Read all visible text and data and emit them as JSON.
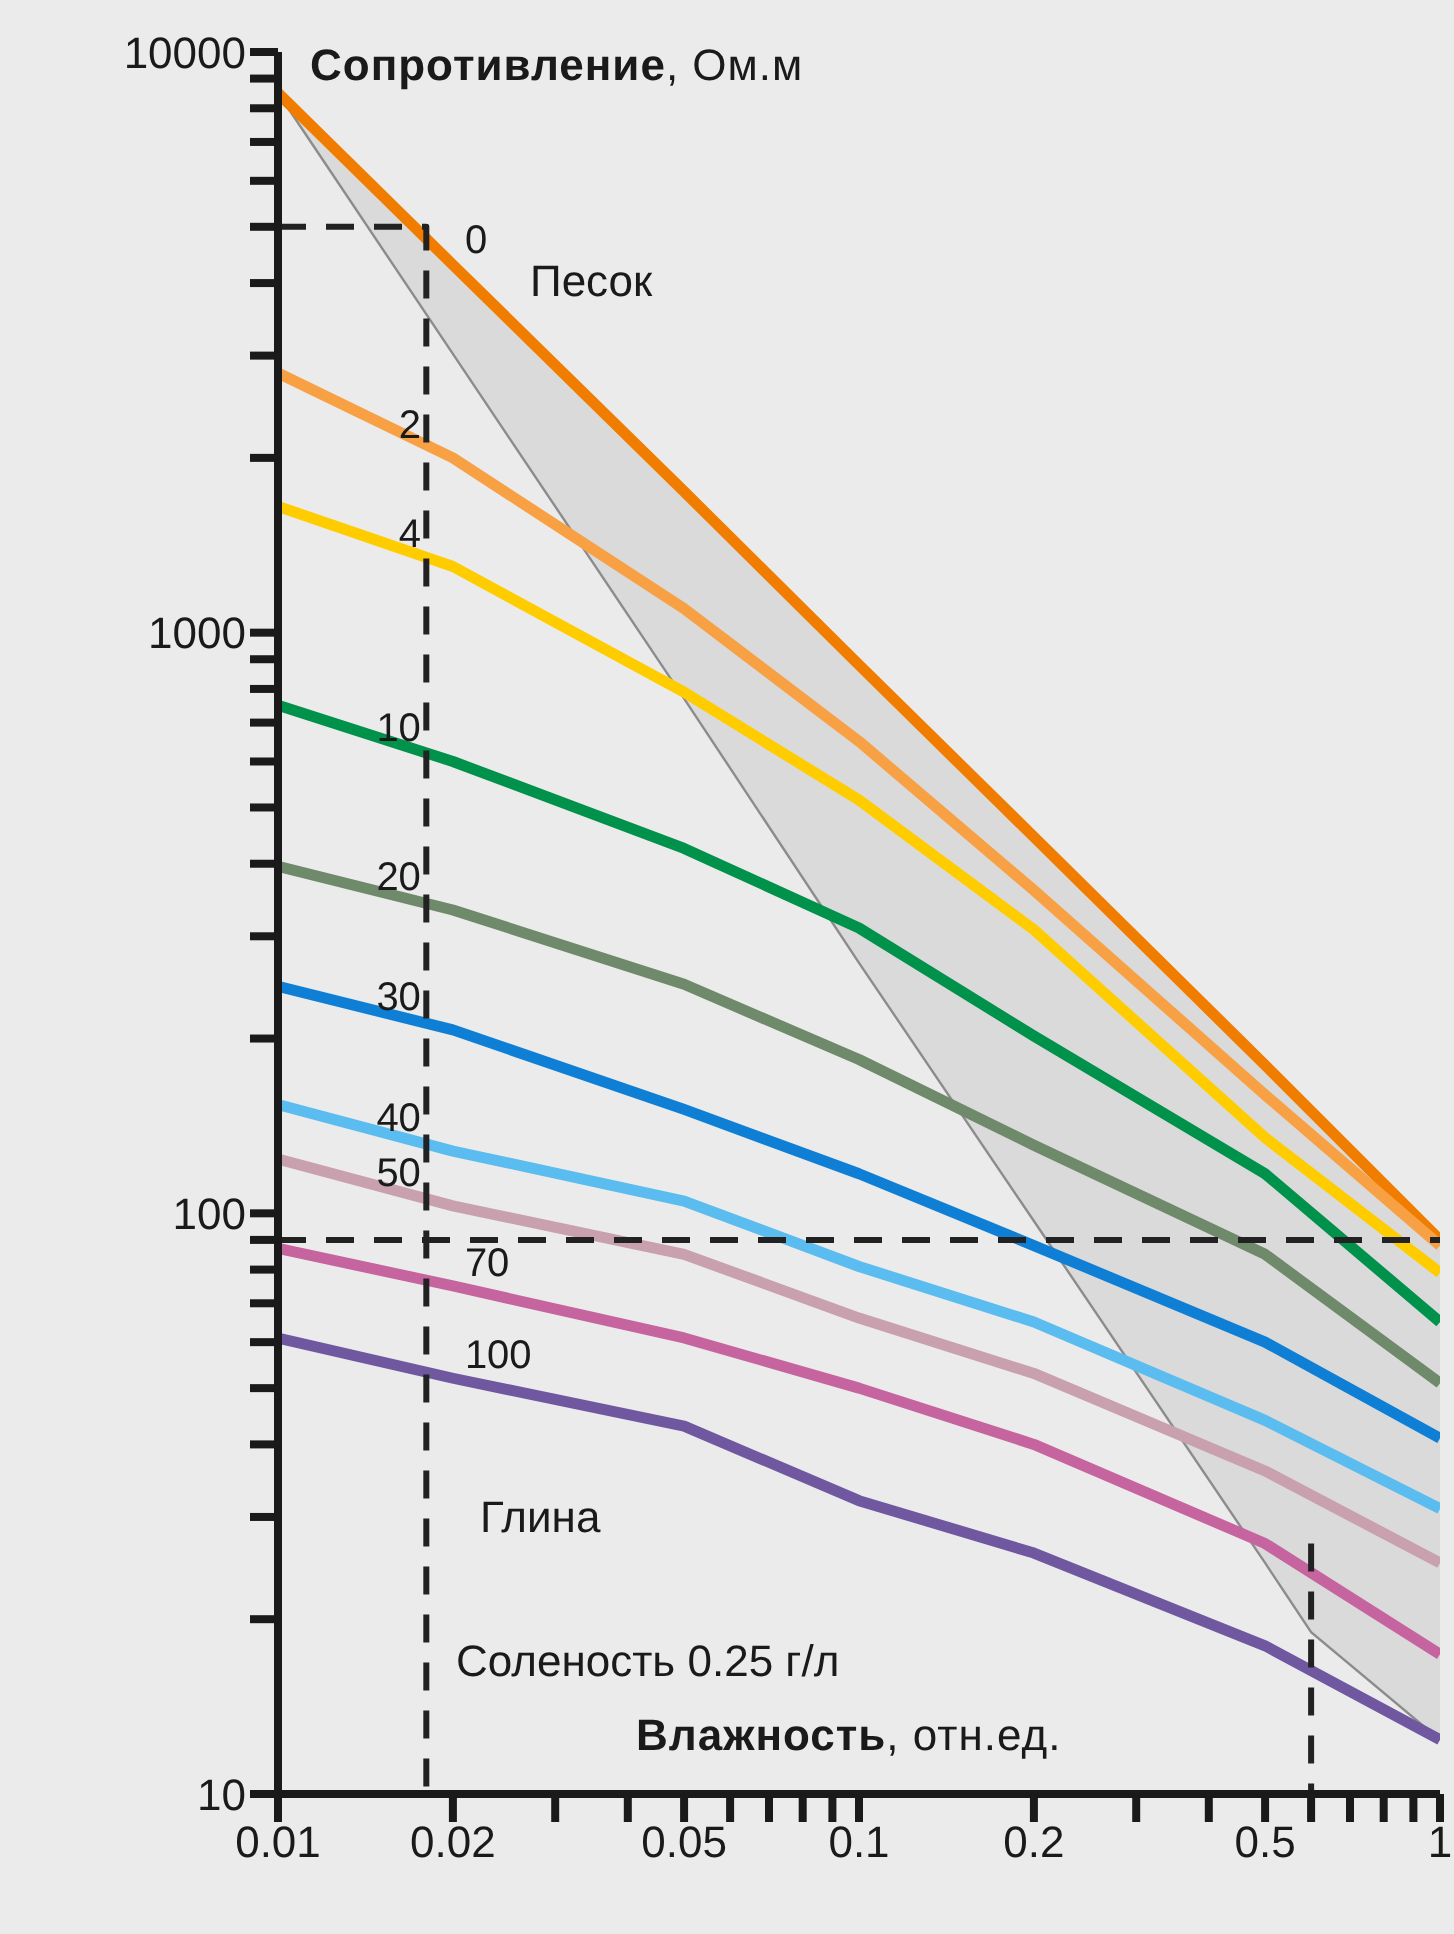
{
  "chart_data": {
    "type": "line",
    "ylabel": "Сопротивление, Ом.м",
    "xlabel": "Влажность, отн.ед.",
    "log": "xy",
    "grid": false,
    "legend": false,
    "marker": "none",
    "line_style": "solid",
    "annotations": [
      "Песок",
      "Глина",
      "Соленость 0.25 г/л"
    ],
    "x": [
      0.01,
      0.02,
      0.05,
      0.1,
      0.2,
      0.5,
      1
    ],
    "xlim": [
      0.01,
      1
    ],
    "ylim": [
      10,
      10000
    ],
    "xticks": [
      0.01,
      0.02,
      {
        "value": 0.03,
        "label": null
      },
      {
        "value": 0.04,
        "label": null
      },
      0.05,
      {
        "value": 0.06,
        "label": null
      },
      {
        "value": 0.07,
        "label": null
      },
      {
        "value": 0.08,
        "label": null
      },
      {
        "value": 0.09,
        "label": null
      },
      0.1,
      0.2,
      {
        "value": 0.3,
        "label": null
      },
      {
        "value": 0.4,
        "label": null
      },
      0.5,
      {
        "value": 0.6,
        "label": null
      },
      {
        "value": 0.7,
        "label": null
      },
      {
        "value": 0.8,
        "label": null
      },
      {
        "value": 0.9,
        "label": null
      },
      1
    ],
    "yticks": [
      10,
      {
        "value": 20,
        "label": null
      },
      {
        "value": 30,
        "label": null
      },
      {
        "value": 40,
        "label": null
      },
      {
        "value": 50,
        "label": null
      },
      {
        "value": 60,
        "label": null
      },
      {
        "value": 70,
        "label": null
      },
      {
        "value": 80,
        "label": null
      },
      {
        "value": 90,
        "label": null
      },
      100,
      {
        "value": 200,
        "label": null
      },
      {
        "value": 300,
        "label": null
      },
      {
        "value": 400,
        "label": null
      },
      {
        "value": 500,
        "label": null
      },
      {
        "value": 600,
        "label": null
      },
      {
        "value": 700,
        "label": null
      },
      {
        "value": 800,
        "label": null
      },
      {
        "value": 900,
        "label": null
      },
      1000,
      {
        "value": 2000,
        "label": null
      },
      {
        "value": 3000,
        "label": null
      },
      {
        "value": 4000,
        "label": null
      },
      {
        "value": 5000,
        "label": null
      },
      {
        "value": 6000,
        "label": null
      },
      {
        "value": 7000,
        "label": null
      },
      {
        "value": 8000,
        "label": null
      },
      {
        "value": 9000,
        "label": null
      },
      10000
    ],
    "ref_lines": [
      {
        "axis": "y",
        "value": 90,
        "color": "#222222",
        "line_style": "dashed"
      }
    ],
    "series": [
      {
        "name": "0",
        "color": "#f07d00",
        "x": [
          0.01,
          0.02,
          0.05,
          0.1,
          0.2,
          0.5,
          0.6,
          1
        ],
        "values": [
          8500,
          4300,
          1750,
          880,
          445,
          180,
          150,
          90
        ],
        "lower": [
          8500,
          3020,
          770,
          270,
          97,
          25,
          19,
          12.4
        ],
        "upper": [
          8500,
          4300,
          1750,
          880,
          445,
          180,
          150,
          90
        ]
      },
      {
        "name": "2",
        "color": "#f7a044",
        "values": [
          2800,
          2000,
          1100,
          650,
          360,
          160,
          88
        ]
      },
      {
        "name": "4",
        "color": "#ffcc00",
        "values": [
          1650,
          1300,
          790,
          515,
          308,
          135,
          79
        ]
      },
      {
        "name": "10",
        "color": "#00914a",
        "values": [
          750,
          600,
          425,
          310,
          202,
          117,
          65
        ]
      },
      {
        "name": "20",
        "color": "#6f8a6a",
        "values": [
          396,
          333,
          248,
          184,
          131,
          85,
          51
        ]
      },
      {
        "name": "30",
        "color": "#0f7fd6",
        "values": [
          246,
          207,
          151,
          117,
          88,
          60,
          41
        ]
      },
      {
        "name": "40",
        "color": "#5bbcf0",
        "values": [
          154,
          128,
          105,
          81,
          65,
          44,
          31
        ]
      },
      {
        "name": "50",
        "color": "#c9a0ad",
        "values": [
          124,
          103,
          85,
          66,
          53,
          36,
          25
        ]
      },
      {
        "name": "70",
        "color": "#c6649f",
        "values": [
          87,
          75,
          61,
          50,
          40,
          27,
          17.4
        ]
      },
      {
        "name": "100",
        "color": "#6f58a0",
        "values": [
          61,
          52,
          43,
          32,
          26,
          18,
          12.4
        ]
      },
      {
        "color": "#222222",
        "line_style": "dashed",
        "x": [
          0.01,
          0.018,
          0.018
        ],
        "values": [
          5000,
          5000,
          10
        ]
      },
      {
        "color": "#222222",
        "line_style": "dashed",
        "x": [
          0.6,
          0.6
        ],
        "values": [
          27,
          10
        ]
      }
    ]
  }
}
